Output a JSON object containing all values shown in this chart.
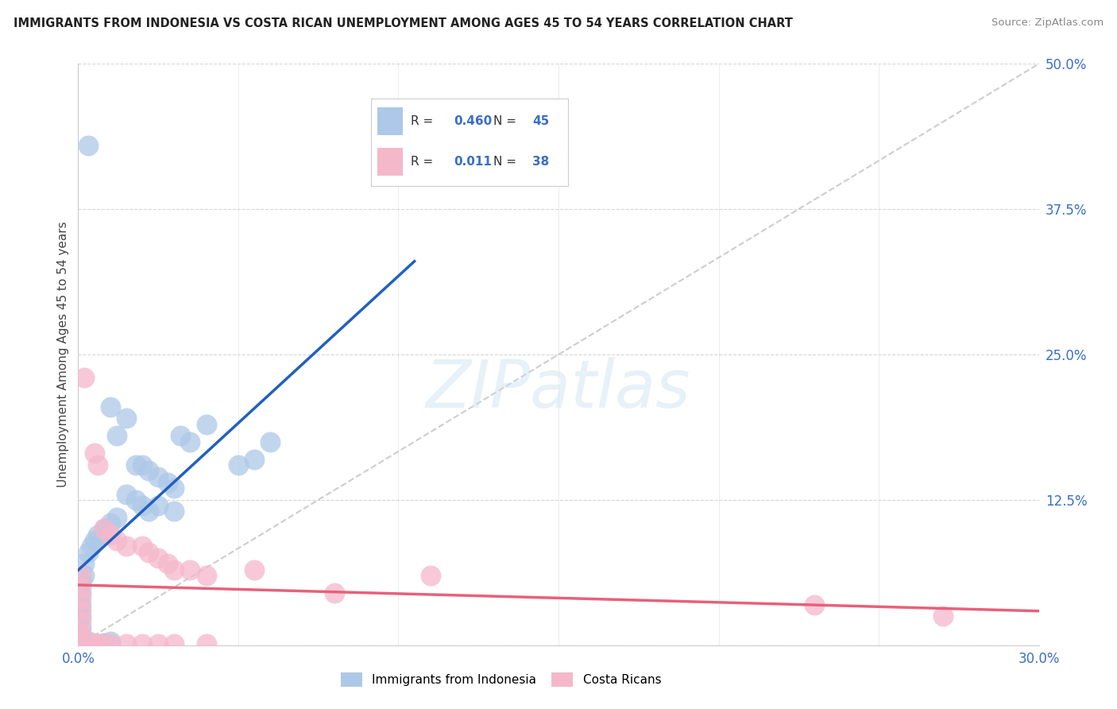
{
  "title": "IMMIGRANTS FROM INDONESIA VS COSTA RICAN UNEMPLOYMENT AMONG AGES 45 TO 54 YEARS CORRELATION CHART",
  "source": "Source: ZipAtlas.com",
  "ylabel": "Unemployment Among Ages 45 to 54 years",
  "xlim": [
    0.0,
    0.3
  ],
  "ylim": [
    0.0,
    0.5
  ],
  "xticks": [
    0.0,
    0.05,
    0.1,
    0.15,
    0.2,
    0.25,
    0.3
  ],
  "xtick_labels": [
    "0.0%",
    "",
    "",
    "",
    "",
    "",
    "30.0%"
  ],
  "yticks": [
    0.0,
    0.125,
    0.25,
    0.375,
    0.5
  ],
  "ytick_labels": [
    "",
    "12.5%",
    "25.0%",
    "37.5%",
    "50.0%"
  ],
  "blue_R": "0.460",
  "blue_N": "45",
  "pink_R": "0.011",
  "pink_N": "38",
  "blue_color": "#adc8e8",
  "pink_color": "#f5b8cb",
  "blue_line_color": "#2060c0",
  "pink_line_color": "#e8607a",
  "blue_scatter": [
    [
      0.003,
      0.43
    ],
    [
      0.01,
      0.205
    ],
    [
      0.012,
      0.18
    ],
    [
      0.015,
      0.195
    ],
    [
      0.018,
      0.155
    ],
    [
      0.02,
      0.155
    ],
    [
      0.022,
      0.15
    ],
    [
      0.025,
      0.145
    ],
    [
      0.028,
      0.14
    ],
    [
      0.03,
      0.135
    ],
    [
      0.032,
      0.18
    ],
    [
      0.035,
      0.175
    ],
    [
      0.04,
      0.19
    ],
    [
      0.025,
      0.12
    ],
    [
      0.03,
      0.115
    ],
    [
      0.015,
      0.13
    ],
    [
      0.018,
      0.125
    ],
    [
      0.02,
      0.12
    ],
    [
      0.022,
      0.115
    ],
    [
      0.012,
      0.11
    ],
    [
      0.01,
      0.105
    ],
    [
      0.008,
      0.1
    ],
    [
      0.006,
      0.095
    ],
    [
      0.005,
      0.09
    ],
    [
      0.004,
      0.085
    ],
    [
      0.003,
      0.08
    ],
    [
      0.002,
      0.07
    ],
    [
      0.002,
      0.06
    ],
    [
      0.001,
      0.055
    ],
    [
      0.001,
      0.045
    ],
    [
      0.001,
      0.035
    ],
    [
      0.001,
      0.025
    ],
    [
      0.001,
      0.015
    ],
    [
      0.001,
      0.008
    ],
    [
      0.002,
      0.005
    ],
    [
      0.003,
      0.003
    ],
    [
      0.004,
      0.002
    ],
    [
      0.005,
      0.001
    ],
    [
      0.006,
      0.001
    ],
    [
      0.007,
      0.001
    ],
    [
      0.008,
      0.002
    ],
    [
      0.01,
      0.003
    ],
    [
      0.06,
      0.175
    ],
    [
      0.055,
      0.16
    ],
    [
      0.05,
      0.155
    ]
  ],
  "pink_scatter": [
    [
      0.002,
      0.23
    ],
    [
      0.005,
      0.165
    ],
    [
      0.006,
      0.155
    ],
    [
      0.008,
      0.1
    ],
    [
      0.01,
      0.095
    ],
    [
      0.012,
      0.09
    ],
    [
      0.015,
      0.085
    ],
    [
      0.02,
      0.085
    ],
    [
      0.022,
      0.08
    ],
    [
      0.025,
      0.075
    ],
    [
      0.028,
      0.07
    ],
    [
      0.03,
      0.065
    ],
    [
      0.035,
      0.065
    ],
    [
      0.04,
      0.06
    ],
    [
      0.001,
      0.06
    ],
    [
      0.001,
      0.05
    ],
    [
      0.001,
      0.04
    ],
    [
      0.001,
      0.03
    ],
    [
      0.001,
      0.02
    ],
    [
      0.001,
      0.01
    ],
    [
      0.001,
      0.005
    ],
    [
      0.002,
      0.003
    ],
    [
      0.003,
      0.002
    ],
    [
      0.004,
      0.001
    ],
    [
      0.005,
      0.001
    ],
    [
      0.006,
      0.001
    ],
    [
      0.008,
      0.001
    ],
    [
      0.01,
      0.001
    ],
    [
      0.015,
      0.001
    ],
    [
      0.02,
      0.001
    ],
    [
      0.025,
      0.001
    ],
    [
      0.055,
      0.065
    ],
    [
      0.08,
      0.045
    ],
    [
      0.11,
      0.06
    ],
    [
      0.23,
      0.035
    ],
    [
      0.27,
      0.025
    ],
    [
      0.03,
      0.001
    ],
    [
      0.04,
      0.001
    ]
  ],
  "blue_line_pts": [
    [
      0.0,
      0.0
    ],
    [
      0.3,
      0.5
    ]
  ],
  "pink_line_pts": [
    [
      0.0,
      0.048
    ],
    [
      0.3,
      0.048
    ]
  ],
  "watermark": "ZIPatlas",
  "background_color": "#ffffff",
  "grid_color": "#cccccc",
  "ref_line_color": "#c8c8c8"
}
